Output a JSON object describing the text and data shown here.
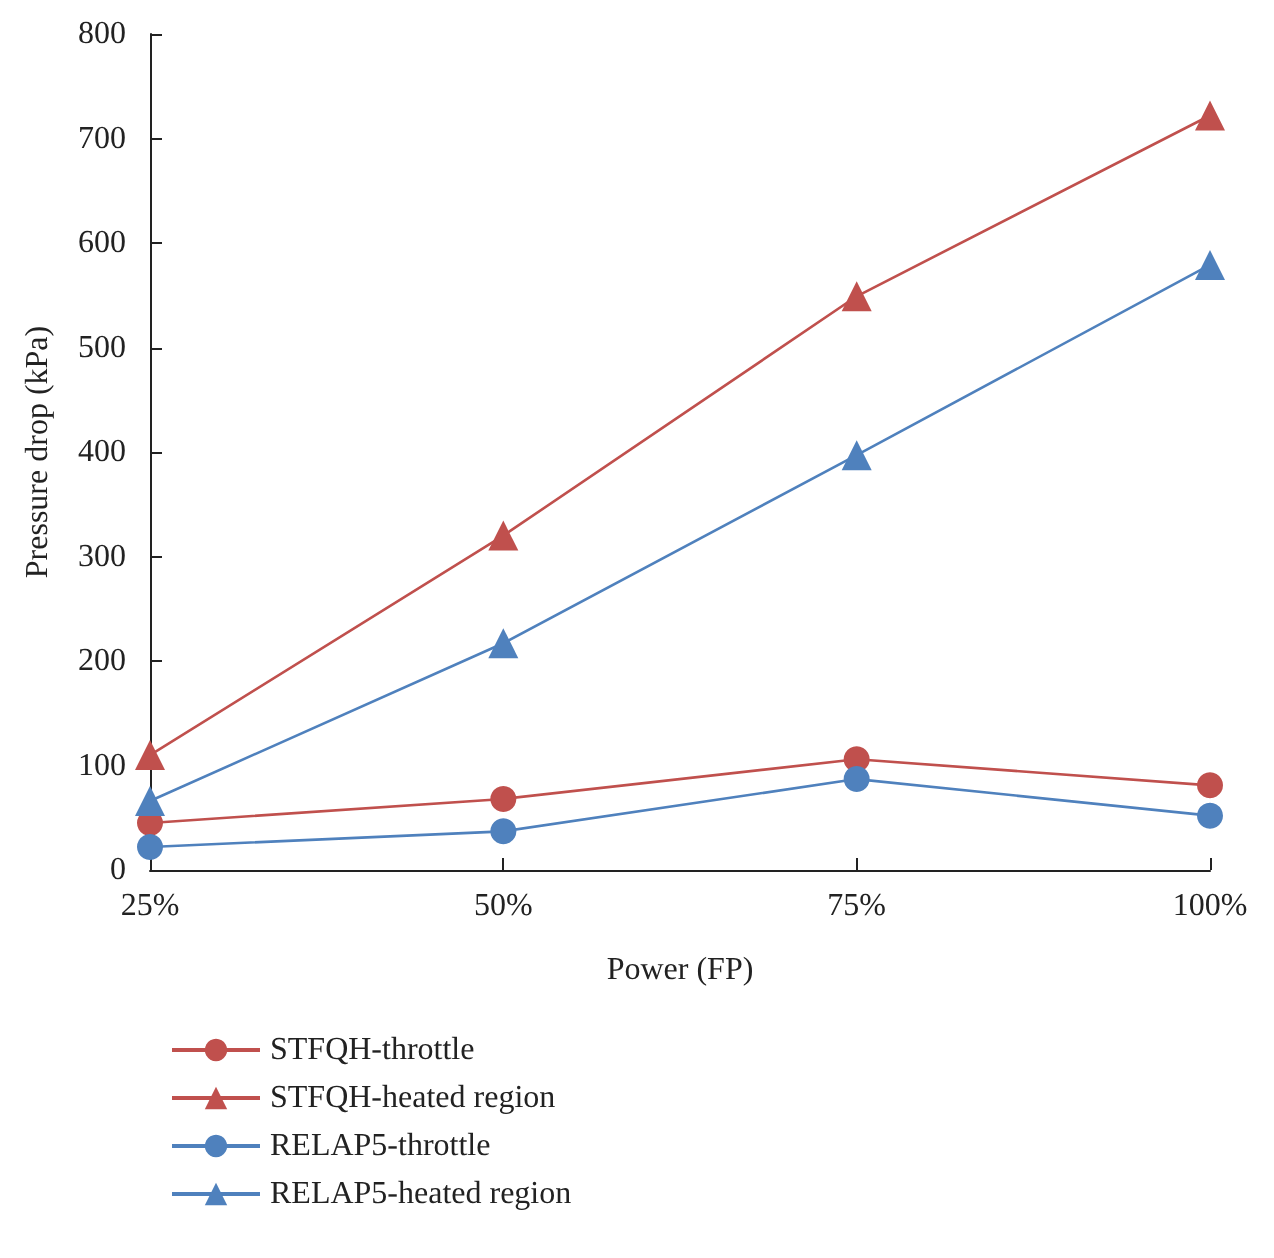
{
  "chart_data": {
    "type": "line",
    "xlabel": "Power (FP)",
    "ylabel": "Pressure drop (kPa)",
    "categories": [
      "25%",
      "50%",
      "75%",
      "100%"
    ],
    "series": [
      {
        "name": "STFQH-throttle",
        "color": "#c0504d",
        "marker": "circle",
        "values": [
          45,
          68,
          106,
          81
        ]
      },
      {
        "name": "STFQH-heated region",
        "color": "#c0504d",
        "marker": "triangle",
        "values": [
          110,
          320,
          549,
          722
        ]
      },
      {
        "name": "RELAP5-throttle",
        "color": "#4f81bd",
        "marker": "circle",
        "values": [
          22,
          37,
          87,
          52
        ]
      },
      {
        "name": "RELAP5-heated region",
        "color": "#4f81bd",
        "marker": "triangle",
        "values": [
          66,
          217,
          397,
          579
        ]
      }
    ],
    "ylim": [
      0,
      800
    ],
    "yticks": [
      0,
      100,
      200,
      300,
      400,
      500,
      600,
      700,
      800
    ],
    "grid": false,
    "legend": "bottom",
    "line_style": "solid"
  }
}
